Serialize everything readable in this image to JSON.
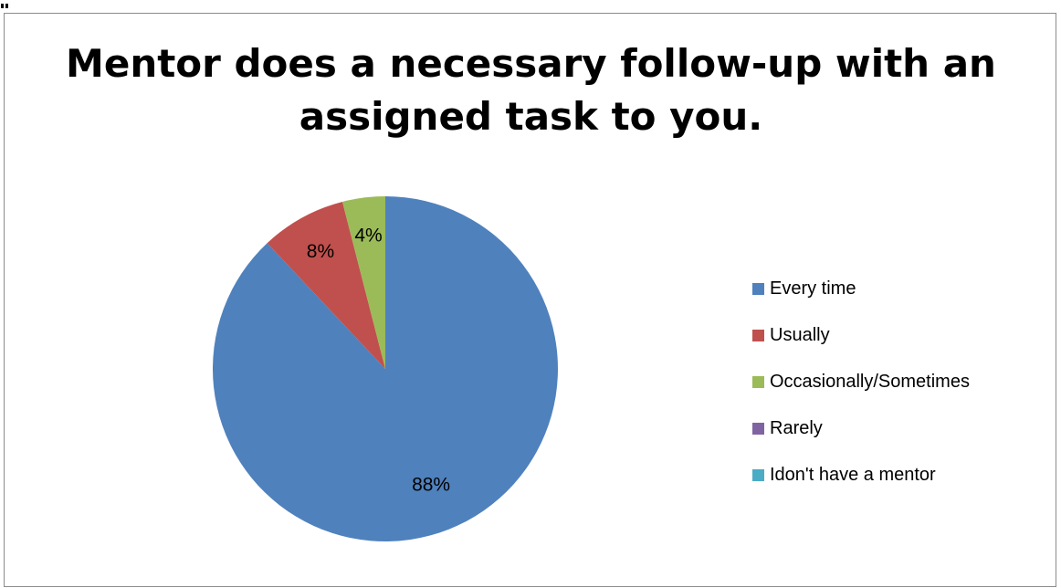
{
  "chart_data": {
    "type": "pie",
    "title_lines": [
      "Mentor does a necessary follow-up with an",
      "assigned task to you."
    ],
    "categories": [
      "Every time",
      "Usually",
      "Occasionally/Sometimes",
      "Rarely",
      "Idon't have a mentor"
    ],
    "values": [
      88,
      8,
      4,
      0,
      0
    ],
    "data_labels": [
      "88%",
      "8%",
      "4%",
      "",
      ""
    ],
    "colors": [
      "#4f81bd",
      "#c0504d",
      "#9bbb59",
      "#8064a2",
      "#4bacc6"
    ],
    "legend_position": "right",
    "start_angle": "12 o'clock",
    "direction": "clockwise"
  }
}
